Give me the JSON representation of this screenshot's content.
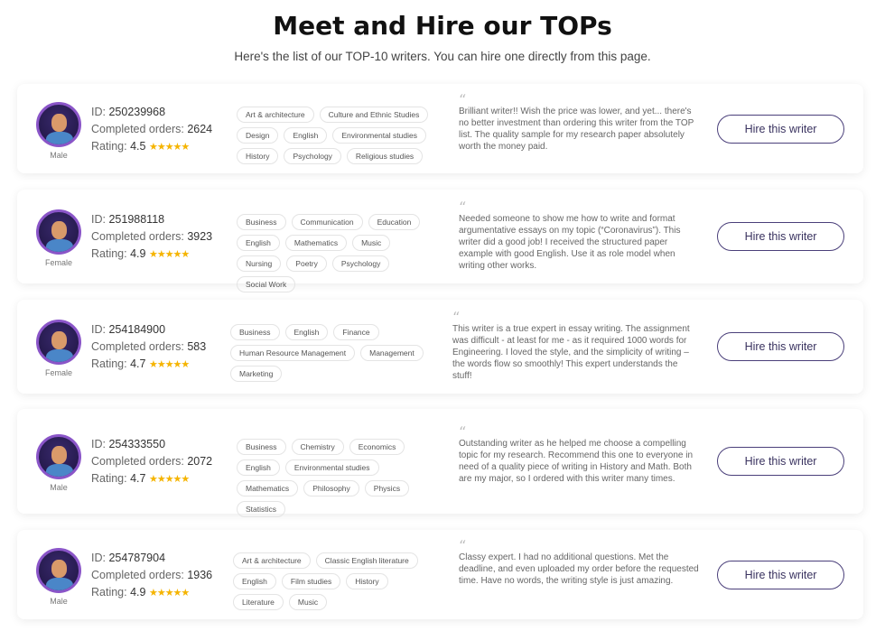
{
  "header": {
    "title": "Meet and Hire our TOPs",
    "subtitle": "Here's the list of our TOP-10 writers. You can hire one directly from this page."
  },
  "labels": {
    "id": "ID:",
    "orders": "Completed orders:",
    "rating": "Rating:",
    "stars": "★★★★★",
    "quote": "“",
    "hire": "Hire this writer"
  },
  "colors": {
    "accent": "#4a3f7a",
    "star": "#f5b400",
    "avatar_ring": "#8a55c8"
  },
  "writers": [
    {
      "gender": "Male",
      "id": "250239968",
      "orders": "2624",
      "rating": "4.5",
      "tags": [
        "Art & architecture",
        "Culture and Ethnic Studies",
        "Design",
        "English",
        "Environmental studies",
        "History",
        "Psychology",
        "Religious studies"
      ],
      "review": "Brilliant writer!! Wish the price was lower, and yet... there's no better investment than ordering this writer from the TOP list. The quality sample for my research paper absolutely worth the money paid."
    },
    {
      "gender": "Female",
      "id": "251988118",
      "orders": "3923",
      "rating": "4.9",
      "tags": [
        "Business",
        "Communication",
        "Education",
        "English",
        "Mathematics",
        "Music",
        "Nursing",
        "Poetry",
        "Psychology",
        "Social Work"
      ],
      "review": "Needed someone to show me how to write and format argumentative essays on my topic (“Coronavirus”). This writer did a good job! I received the structured paper example with good English. Use it as role model when writing other works."
    },
    {
      "gender": "Female",
      "id": "254184900",
      "orders": "583",
      "rating": "4.7",
      "tags": [
        "Business",
        "English",
        "Finance",
        "Human Resource Management",
        "Management",
        "Marketing"
      ],
      "review": "This writer is a true expert in essay writing. The assignment was difficult - at least for me - as it required 1000 words for Engineering. I loved the style, and the simplicity of writing – the words flow so smoothly! This expert understands the stuff!"
    },
    {
      "gender": "Male",
      "id": "254333550",
      "orders": "2072",
      "rating": "4.7",
      "tags": [
        "Business",
        "Chemistry",
        "Economics",
        "English",
        "Environmental studies",
        "Mathematics",
        "Philosophy",
        "Physics",
        "Statistics"
      ],
      "review": "Outstanding writer as he helped me choose a compelling topic for my research. Recommend this one to everyone in need of a quality piece of writing in History and Math. Both are my major, so I ordered with this writer many times."
    },
    {
      "gender": "Male",
      "id": "254787904",
      "orders": "1936",
      "rating": "4.9",
      "tags": [
        "Art & architecture",
        "Classic English literature",
        "English",
        "Film studies",
        "History",
        "Literature",
        "Music"
      ],
      "review": "Classy expert. I had no additional questions. Met the deadline, and even uploaded my order before the requested time. Have no words, the writing style is just amazing."
    }
  ]
}
